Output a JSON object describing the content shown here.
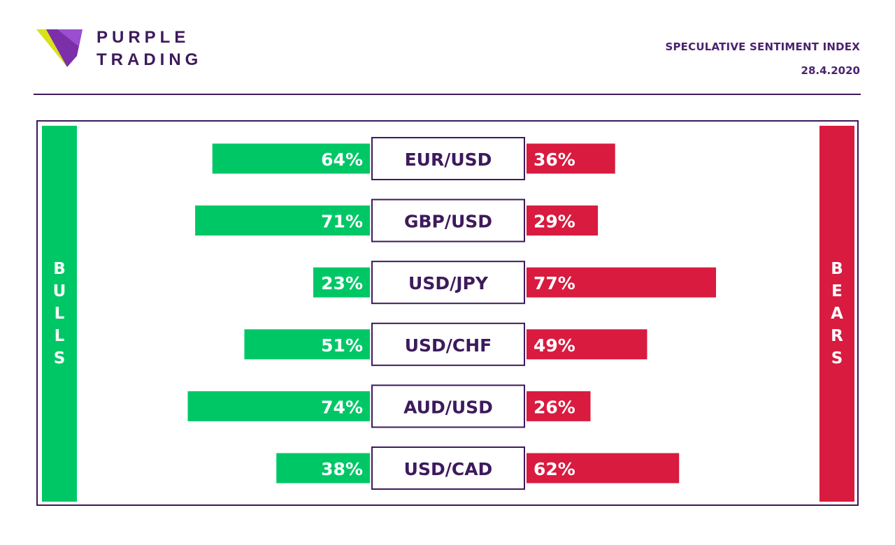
{
  "brand": {
    "line1": "PURPLE",
    "line2": "TRADING"
  },
  "report": {
    "title": "SPECULATIVE SENTIMENT INDEX",
    "date": "28.4.2020"
  },
  "side_labels": {
    "bulls": "BULLS",
    "bears": "BEARS"
  },
  "colors": {
    "bulls": "#00c766",
    "bears": "#d81b3f",
    "accent": "#3d1a5c",
    "logo_yellow": "#d8e21a",
    "logo_purple": "#7b2fa8"
  },
  "chart_data": {
    "type": "bar",
    "orientation": "horizontal-diverging",
    "categories": [
      "EUR/USD",
      "GBP/USD",
      "USD/JPY",
      "USD/CHF",
      "AUD/USD",
      "USD/CAD"
    ],
    "series": [
      {
        "name": "BULLS",
        "values": [
          64,
          71,
          23,
          51,
          74,
          38
        ]
      },
      {
        "name": "BEARS",
        "values": [
          36,
          29,
          77,
          49,
          26,
          62
        ]
      }
    ],
    "value_suffix": "%",
    "xlim": [
      0,
      100
    ]
  }
}
